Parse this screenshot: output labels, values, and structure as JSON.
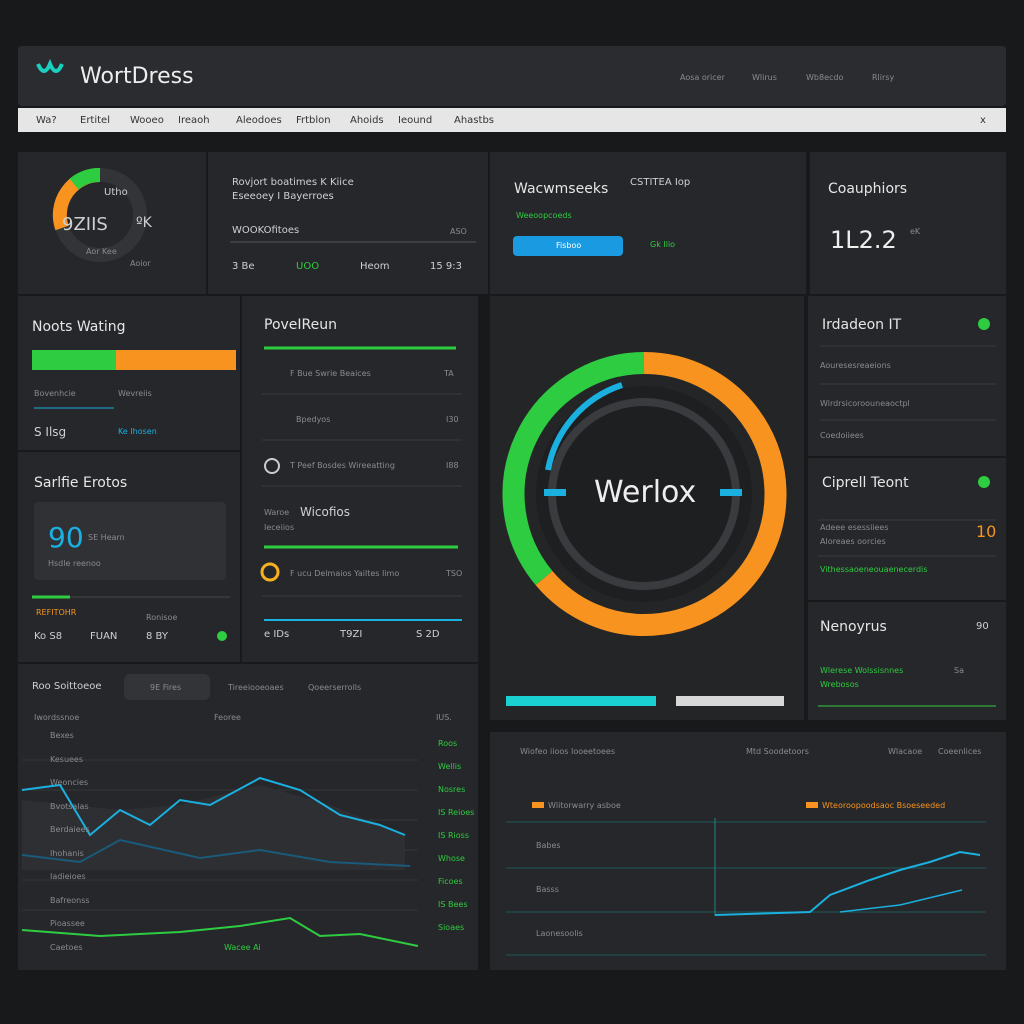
{
  "header": {
    "logo": "WortDress",
    "links": [
      "Aosa oricer",
      "Wlirus",
      "Wb8ecdo",
      "Rlirsy"
    ]
  },
  "subnav": {
    "items": [
      "Wa?",
      "Ertitel",
      "Wooeo",
      "Ireaoh",
      "Aleodoes",
      "Frtblon",
      "Ahoids",
      "Ieound",
      "Ahastbs"
    ],
    "close": "x"
  },
  "cards": {
    "gauge": {
      "label": "Utho",
      "value": "9ZIIS",
      "unit": "ºK",
      "caption": "Aor Kee",
      "foot": "Aoior"
    },
    "report": {
      "title": "Rovjort boatimes K Kiice",
      "subtitle": "Eseeoey I Bayerroes",
      "field": "WOOKOfitoes",
      "field_value": "ASO",
      "stats": [
        "3 Be",
        "UOO",
        "Heom",
        "15 9:3"
      ]
    },
    "views": {
      "title": "Wacwmseeks",
      "meta": "CSTITEA Iop",
      "sub": "Weeoopcoeds",
      "button": "Fisboo",
      "status": "Gk Ilio"
    },
    "counter": {
      "title": "Coauphiors",
      "value": "1L2.2",
      "unit": "eK"
    },
    "writing": {
      "title": "Noots Wating",
      "labels": [
        "Bovenhcie",
        "Wevreiis"
      ],
      "value": "S Ilsg",
      "link": "Ke Ihosen"
    },
    "stories": {
      "title": "Sarlfie Erotos",
      "value": "90",
      "value_label": "SE Hearn",
      "note": "Hsdle reenoo",
      "tag": "REFITOHR",
      "tag2": "Ronisoe",
      "stats": [
        "Ko S8",
        "FUAN",
        "8 BY"
      ]
    },
    "power": {
      "title": "PoveIReun",
      "items": [
        {
          "text": "F Bue Swrie Beaices",
          "n": "TA"
        },
        {
          "text": "Bpedyos",
          "n": "I30"
        },
        {
          "text": "T Peef Bosdes Wireeatting",
          "n": "I88"
        },
        {
          "text": "F ucu Delmaios Yailtes Iimo",
          "n": "TSO"
        }
      ],
      "feature": "Wicofios",
      "feature_prefix": "Waroe",
      "feature_note": "Ieceiios",
      "stats": [
        "e IDs",
        "T9ZI",
        "S 2D"
      ]
    },
    "ring": {
      "label": "Werlox"
    },
    "insights": {
      "title": "Irdadeon IT",
      "rows": [
        "Aouresesreaeions",
        "Wirdrsicoroouneaoctpl",
        "Coedoiiees"
      ]
    },
    "department": {
      "title": "Ciprell Teont",
      "value": "10",
      "rows": [
        "Adeee esessiiees",
        "Aloreaes oorcies",
        "Vithessaoeneouaenecerdis"
      ]
    },
    "network": {
      "title": "Nenoyrus",
      "value": "90",
      "rows": [
        "Wlerese Wolssisnnes",
        "Wrebosos"
      ],
      "n": "Sa"
    },
    "traffic": {
      "tabs": [
        "Roo Soittoeoe",
        "9E Fires",
        "Tireeiooeoaes",
        "Qoeerserrolls"
      ],
      "header": [
        "Iwordssnoe",
        "Feoree",
        "IUS."
      ],
      "labels": [
        "Bexes",
        "Kesuees",
        "Weoncies",
        "Bvotsalas",
        "Berdaiees",
        "Ihohanis",
        "Iadieioes",
        "Bafreonss",
        "Pioassee",
        "Caetoes"
      ],
      "right": [
        "Roos",
        "Wellis",
        "Nosres",
        "IS Reioes",
        "IS Rioss",
        "Whose",
        "Ficoes",
        "IS Bees",
        "Sioaes"
      ],
      "foot": "Wacee Ai"
    },
    "analytics": {
      "title": "Wiofeo iioos Iooeetoees",
      "mid": "Mtd Soodetoors",
      "right": [
        "Wlacaoe",
        "Coeenlices"
      ],
      "legend": [
        "Wlitorwarry asboe",
        "Wteoroopoodsaoc Bsoeseeded"
      ],
      "labels": [
        "Babes",
        "Basss",
        "Laonesoolis"
      ]
    }
  }
}
